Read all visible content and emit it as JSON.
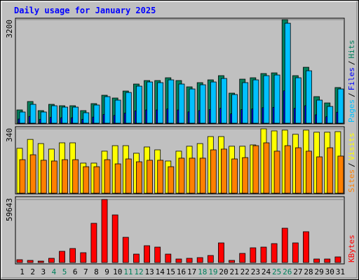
{
  "chart_data": [
    {
      "type": "bar",
      "title": "Daily usage for January 2025",
      "ylim": [
        0,
        3200
      ],
      "yticks": [
        3200
      ],
      "legend_separator": "/",
      "series": [
        {
          "name": "Hits",
          "color": "#00805c",
          "values": [
            410,
            670,
            389,
            583,
            540,
            540,
            389,
            605,
            864,
            778,
            994,
            1210,
            1318,
            1318,
            1404,
            1318,
            1123,
            1253,
            1339,
            1469,
            929,
            1361,
            1404,
            1534,
            1555,
            3200,
            1469,
            1728,
            821,
            626,
            1102
          ]
        },
        {
          "name": "Files",
          "color": "#0000ff",
          "values": [
            130,
            210,
            120,
            180,
            170,
            170,
            120,
            190,
            270,
            240,
            310,
            380,
            410,
            410,
            440,
            410,
            350,
            390,
            420,
            460,
            290,
            420,
            440,
            480,
            490,
            1000,
            460,
            540,
            260,
            200,
            340
          ]
        },
        {
          "name": "Pages",
          "color": "#00c0ff",
          "values": [
            346,
            583,
            346,
            540,
            497,
            497,
            324,
            562,
            821,
            713,
            950,
            1145,
            1274,
            1253,
            1339,
            1210,
            1058,
            1188,
            1274,
            1382,
            886,
            1253,
            1339,
            1469,
            1490,
            3089,
            1404,
            1620,
            713,
            518,
            1058
          ]
        }
      ]
    },
    {
      "type": "bar",
      "ylim": [
        0,
        340
      ],
      "yticks": [
        340
      ],
      "legend_separator": "/",
      "series": [
        {
          "name": "Visits",
          "color": "#ffff00",
          "values": [
            237,
            284,
            262,
            233,
            266,
            266,
            159,
            159,
            222,
            251,
            251,
            211,
            244,
            229,
            170,
            222,
            248,
            262,
            299,
            299,
            248,
            248,
            255,
            340,
            329,
            333,
            311,
            333,
            322,
            322,
            325
          ]
        },
        {
          "name": "Sites",
          "color": "#ff8000",
          "values": [
            177,
            203,
            174,
            170,
            177,
            177,
            140,
            140,
            177,
            155,
            181,
            166,
            174,
            174,
            140,
            185,
            185,
            185,
            229,
            233,
            181,
            188,
            251,
            266,
            222,
            251,
            240,
            222,
            192,
            240,
            196
          ]
        }
      ]
    },
    {
      "type": "bar",
      "ylim": [
        0,
        59643
      ],
      "yticks": [
        59643
      ],
      "categories": [
        "1",
        "2",
        "3",
        "4",
        "5",
        "6",
        "7",
        "8",
        "9",
        "10",
        "11",
        "12",
        "13",
        "14",
        "15",
        "16",
        "17",
        "18",
        "19",
        "20",
        "21",
        "22",
        "23",
        "24",
        "25",
        "26",
        "27",
        "28",
        "29",
        "30",
        "31"
      ],
      "category_colors": [
        "#000000",
        "#000000",
        "#000000",
        "#00805c",
        "#00805c",
        "#000000",
        "#000000",
        "#000000",
        "#000000",
        "#000000",
        "#00805c",
        "#00805c",
        "#000000",
        "#000000",
        "#000000",
        "#000000",
        "#000000",
        "#00805c",
        "#00805c",
        "#000000",
        "#000000",
        "#000000",
        "#000000",
        "#000000",
        "#00805c",
        "#00805c",
        "#000000",
        "#000000",
        "#000000",
        "#000000",
        "#000000"
      ],
      "series": [
        {
          "name": "KBytes",
          "color": "#ff0000",
          "values": [
            2651,
            1988,
            1325,
            3976,
            10604,
            13254,
            9278,
            37111,
            59643,
            45059,
            23855,
            7952,
            15904,
            14579,
            7952,
            3314,
            3976,
            4639,
            6627,
            18556,
            1988,
            8615,
            13917,
            14579,
            17893,
            32472,
            18556,
            29159,
            3314,
            3314,
            5302
          ]
        }
      ]
    }
  ]
}
